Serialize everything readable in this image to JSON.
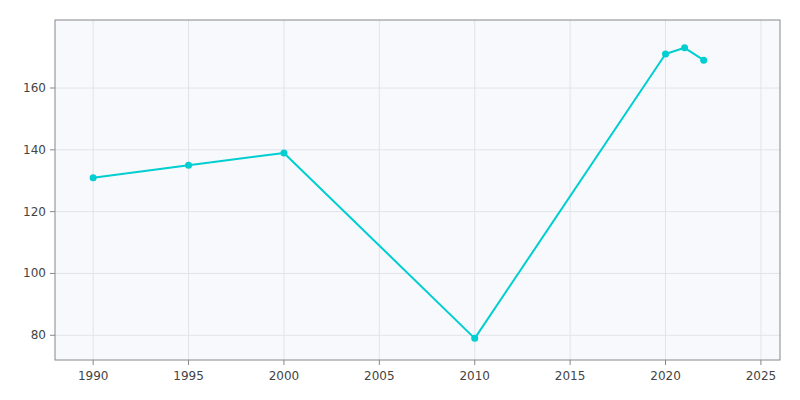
{
  "chart_data": {
    "type": "line",
    "x": [
      1990,
      1995,
      2000,
      2010,
      2020,
      2021,
      2022
    ],
    "values": [
      131,
      135,
      139,
      79,
      171,
      173,
      169
    ],
    "color": "#00CED1",
    "marker": "circle",
    "xlim": [
      1988,
      2026
    ],
    "ylim": [
      72,
      182
    ],
    "xticks": [
      1990,
      1995,
      2000,
      2005,
      2010,
      2015,
      2020,
      2025
    ],
    "yticks": [
      80,
      100,
      120,
      140,
      160
    ],
    "grid": true
  }
}
